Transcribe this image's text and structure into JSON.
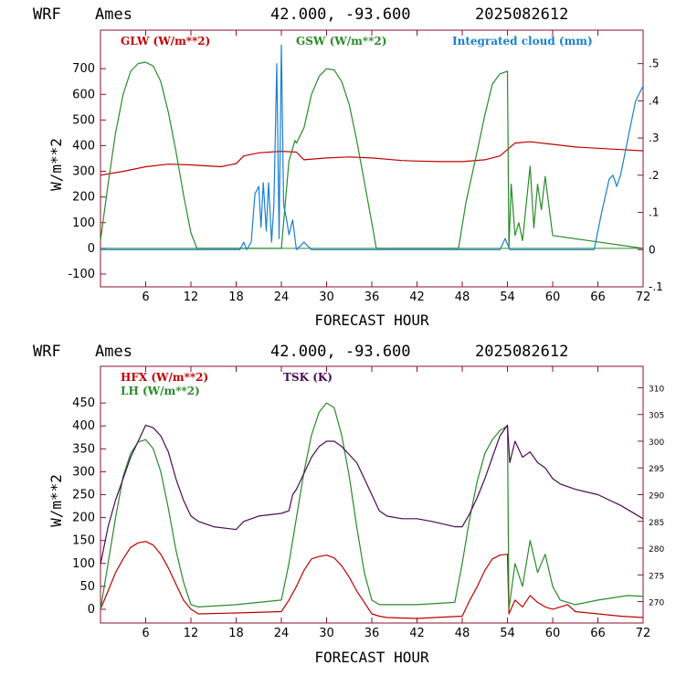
{
  "colors": {
    "red": "#c00000",
    "green": "#2a8a2a",
    "blue": "#1a7fd0",
    "purple": "#4b0a52",
    "axis": "#8a1030"
  },
  "chart_data": [
    {
      "type": "line",
      "header": {
        "model": "WRF",
        "site": "Ames",
        "coords": "42.000, -93.600",
        "run": "2025082612"
      },
      "xlabel": "FORECAST HOUR",
      "ylabel": "W/m**2",
      "xlim": [
        0,
        72
      ],
      "ylim": [
        -150,
        850
      ],
      "y2lim": [
        -0.1,
        0.59
      ],
      "x_ticks": [
        6,
        12,
        18,
        24,
        30,
        36,
        42,
        48,
        54,
        60,
        66,
        72
      ],
      "y_ticks": [
        -100,
        0,
        100,
        200,
        300,
        400,
        500,
        600,
        700
      ],
      "y2_ticks": [
        -0.1,
        0,
        0.1,
        0.2,
        0.3,
        0.4,
        0.5
      ],
      "y2_tick_labels": [
        "-.1",
        "0",
        ".1",
        ".2",
        ".3",
        ".4",
        ".5"
      ],
      "zero_line": true,
      "series": [
        {
          "name": "GLW (W/m**2)",
          "color": "red",
          "axis": "left",
          "x": [
            0,
            3,
            6,
            9,
            12,
            16,
            18,
            19,
            21,
            24,
            26,
            27,
            30,
            33,
            36,
            40,
            42,
            45,
            48,
            51,
            53,
            54,
            55,
            57,
            60,
            63,
            66,
            69,
            72
          ],
          "y": [
            285,
            300,
            318,
            328,
            325,
            318,
            330,
            360,
            372,
            378,
            375,
            345,
            352,
            356,
            352,
            342,
            340,
            338,
            338,
            345,
            360,
            385,
            410,
            415,
            405,
            395,
            390,
            385,
            380
          ]
        },
        {
          "name": "GSW (W/m**2)",
          "color": "green",
          "axis": "left",
          "x": [
            0,
            1,
            2,
            3,
            4,
            5,
            6,
            7,
            8,
            9,
            10,
            11,
            12,
            12.8,
            24,
            25,
            25.8,
            26,
            27,
            28,
            29,
            30,
            31,
            32,
            33,
            34,
            35,
            36,
            36.6,
            47.5,
            48.5,
            50,
            51,
            52,
            53,
            54,
            54.2,
            54.5,
            55,
            55.5,
            56,
            57,
            57.5,
            58,
            58.5,
            59,
            60,
            72
          ],
          "y": [
            30,
            250,
            450,
            600,
            690,
            720,
            725,
            710,
            650,
            530,
            380,
            210,
            60,
            0,
            0,
            340,
            420,
            410,
            470,
            600,
            670,
            700,
            695,
            650,
            560,
            420,
            260,
            100,
            0,
            0,
            180,
            380,
            520,
            640,
            680,
            690,
            0,
            250,
            50,
            100,
            30,
            320,
            80,
            250,
            150,
            280,
            50,
            0
          ]
        },
        {
          "name": "Integrated cloud (mm)",
          "color": "blue",
          "axis": "right",
          "x": [
            0,
            18.5,
            19,
            19.4,
            20,
            20.5,
            21,
            21.3,
            21.6,
            22,
            22.3,
            22.7,
            23,
            23.4,
            23.7,
            24,
            24.3,
            24.7,
            25,
            25.5,
            26,
            27,
            27.5,
            28,
            53,
            53.7,
            54.3,
            65.5,
            66.5,
            67.5,
            68,
            68.5,
            69,
            70,
            71,
            72
          ],
          "y": [
            0,
            0,
            0.02,
            0,
            0.02,
            0.15,
            0.17,
            0.06,
            0.18,
            0.05,
            0.18,
            0.02,
            0.12,
            0.5,
            0.03,
            0.55,
            0.12,
            0.08,
            0.04,
            0.08,
            0,
            0.02,
            0.01,
            0,
            0,
            0.03,
            0,
            0,
            0.1,
            0.19,
            0.2,
            0.17,
            0.2,
            0.3,
            0.4,
            0.44
          ]
        }
      ]
    },
    {
      "type": "line",
      "header": {
        "model": "WRF",
        "site": "Ames",
        "coords": "42.000, -93.600",
        "run": "2025082612"
      },
      "xlabel": "FORECAST HOUR",
      "ylabel": "W/m**2",
      "xlim": [
        0,
        72
      ],
      "ylim": [
        -30,
        530
      ],
      "y2lim": [
        266,
        314
      ],
      "x_ticks": [
        6,
        12,
        18,
        24,
        30,
        36,
        42,
        48,
        54,
        60,
        66,
        72
      ],
      "y_ticks": [
        0,
        50,
        100,
        150,
        200,
        250,
        300,
        350,
        400,
        450
      ],
      "y2_ticks": [
        270,
        275,
        280,
        285,
        290,
        295,
        300,
        305,
        310
      ],
      "y2_tick_labels": [
        "270",
        "275",
        "280",
        "285",
        "290",
        "295",
        "300",
        "305",
        "310"
      ],
      "zero_line": false,
      "series": [
        {
          "name": "HFX (W/m**2)",
          "color": "red",
          "axis": "left",
          "x": [
            0,
            1,
            2,
            3,
            4,
            5,
            6,
            7,
            8,
            9,
            10,
            11,
            12,
            13,
            18,
            24,
            25,
            26,
            27,
            28,
            29,
            30,
            31,
            32,
            33,
            34,
            35,
            36,
            37,
            38,
            42,
            48,
            49,
            50,
            51,
            52,
            53,
            54,
            54.2,
            55,
            56,
            57,
            58,
            59,
            60,
            62,
            63,
            66,
            69,
            72
          ],
          "y": [
            0,
            40,
            80,
            110,
            135,
            145,
            148,
            140,
            120,
            90,
            55,
            20,
            0,
            -10,
            -8,
            -5,
            20,
            50,
            85,
            110,
            115,
            118,
            112,
            95,
            70,
            40,
            15,
            -10,
            -15,
            -18,
            -20,
            -15,
            20,
            50,
            85,
            110,
            118,
            120,
            -10,
            20,
            5,
            30,
            15,
            5,
            0,
            10,
            -5,
            -10,
            -15,
            -18
          ]
        },
        {
          "name": "LH (W/m**2)",
          "color": "green",
          "axis": "left",
          "x": [
            0,
            1,
            2,
            3,
            4,
            5,
            6,
            7,
            8,
            9,
            10,
            11,
            12,
            13,
            18,
            24,
            25,
            26,
            27,
            28,
            29,
            30,
            31,
            32,
            33,
            34,
            35,
            36,
            37,
            38,
            42,
            47,
            48,
            49,
            50,
            51,
            52,
            53,
            54,
            54.2,
            55,
            56,
            57,
            58,
            59,
            60,
            61,
            63,
            66,
            70,
            72
          ],
          "y": [
            0,
            100,
            200,
            290,
            340,
            365,
            370,
            350,
            300,
            220,
            130,
            60,
            10,
            5,
            10,
            20,
            100,
            200,
            300,
            380,
            430,
            450,
            440,
            380,
            290,
            180,
            80,
            20,
            10,
            10,
            10,
            15,
            100,
            200,
            280,
            340,
            370,
            390,
            400,
            0,
            100,
            50,
            150,
            80,
            120,
            50,
            20,
            10,
            20,
            30,
            28
          ]
        },
        {
          "name": "TSK (K)",
          "color": "purple",
          "axis": "right",
          "x": [
            0,
            1,
            2,
            3,
            4,
            5,
            6,
            7,
            8,
            9,
            10,
            11,
            12,
            13,
            15,
            18,
            19,
            21,
            24,
            25,
            25.5,
            26,
            27,
            28,
            29,
            30,
            31,
            32,
            33,
            34,
            35,
            36,
            37,
            38,
            40,
            42,
            44,
            47,
            48,
            49,
            50,
            51,
            52,
            53,
            54,
            54.3,
            55,
            56,
            57,
            58,
            59,
            60,
            61,
            63,
            66,
            69,
            72
          ],
          "y": [
            277,
            284,
            289,
            293,
            297,
            300,
            303,
            302.5,
            301,
            298,
            293,
            289,
            286,
            285,
            284,
            283.5,
            285,
            286,
            286.5,
            287,
            290,
            291,
            294,
            297,
            299,
            300,
            300,
            299,
            297.5,
            296,
            293,
            290,
            287,
            286,
            285.5,
            285.5,
            285,
            284,
            284,
            286.5,
            289.5,
            293,
            297,
            301,
            303,
            296,
            300,
            297,
            298,
            296,
            295,
            293,
            292,
            291,
            290,
            288,
            285.5
          ]
        }
      ]
    }
  ]
}
